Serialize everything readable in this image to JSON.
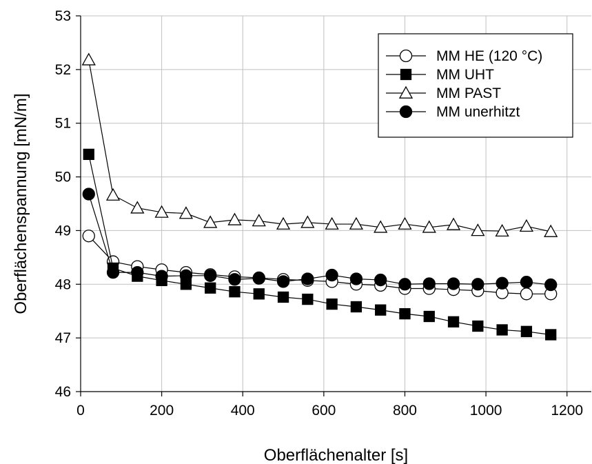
{
  "chart_data": {
    "type": "line",
    "xlabel": "Oberflächenalter [s]",
    "ylabel": "Oberflächenspannung [mN/m]",
    "xlim": [
      0,
      1260
    ],
    "ylim": [
      46,
      53
    ],
    "xticks": [
      0,
      200,
      400,
      600,
      800,
      1000,
      1200
    ],
    "yticks": [
      46,
      47,
      48,
      49,
      50,
      51,
      52,
      53
    ],
    "grid": true,
    "legend_position": "top-right",
    "series": [
      {
        "name": "MM HE (120 °C)",
        "marker": "circle-open",
        "x": [
          20,
          80,
          140,
          200,
          260,
          320,
          380,
          440,
          500,
          560,
          620,
          680,
          740,
          800,
          860,
          920,
          980,
          1040,
          1100,
          1160
        ],
        "y": [
          48.9,
          48.42,
          48.33,
          48.27,
          48.22,
          48.18,
          48.14,
          48.12,
          48.09,
          48.07,
          48.05,
          48.0,
          47.98,
          47.92,
          47.92,
          47.9,
          47.88,
          47.84,
          47.82,
          47.82
        ]
      },
      {
        "name": "MM UHT",
        "marker": "square-filled",
        "x": [
          20,
          80,
          140,
          200,
          260,
          320,
          380,
          440,
          500,
          560,
          620,
          680,
          740,
          800,
          860,
          920,
          980,
          1040,
          1100,
          1160
        ],
        "y": [
          50.42,
          48.3,
          48.15,
          48.07,
          48.0,
          47.93,
          47.86,
          47.82,
          47.76,
          47.72,
          47.63,
          47.58,
          47.52,
          47.45,
          47.4,
          47.3,
          47.22,
          47.15,
          47.12,
          47.06
        ]
      },
      {
        "name": "MM PAST",
        "marker": "triangle-open",
        "x": [
          20,
          80,
          140,
          200,
          260,
          320,
          380,
          440,
          500,
          560,
          620,
          680,
          740,
          800,
          860,
          920,
          980,
          1040,
          1100,
          1160
        ],
        "y": [
          52.18,
          49.66,
          49.42,
          49.34,
          49.32,
          49.15,
          49.2,
          49.18,
          49.12,
          49.15,
          49.12,
          49.12,
          49.06,
          49.12,
          49.06,
          49.11,
          49.0,
          48.99,
          49.08,
          48.98
        ]
      },
      {
        "name": "MM unerhitzt",
        "marker": "circle-filled",
        "x": [
          20,
          80,
          140,
          200,
          260,
          320,
          380,
          440,
          500,
          560,
          620,
          680,
          740,
          800,
          860,
          920,
          980,
          1040,
          1100,
          1160
        ],
        "y": [
          49.68,
          48.22,
          48.22,
          48.15,
          48.16,
          48.16,
          48.09,
          48.11,
          48.05,
          48.1,
          48.17,
          48.1,
          48.08,
          48.0,
          48.01,
          48.01,
          48.0,
          48.02,
          48.04,
          47.99
        ]
      }
    ]
  }
}
